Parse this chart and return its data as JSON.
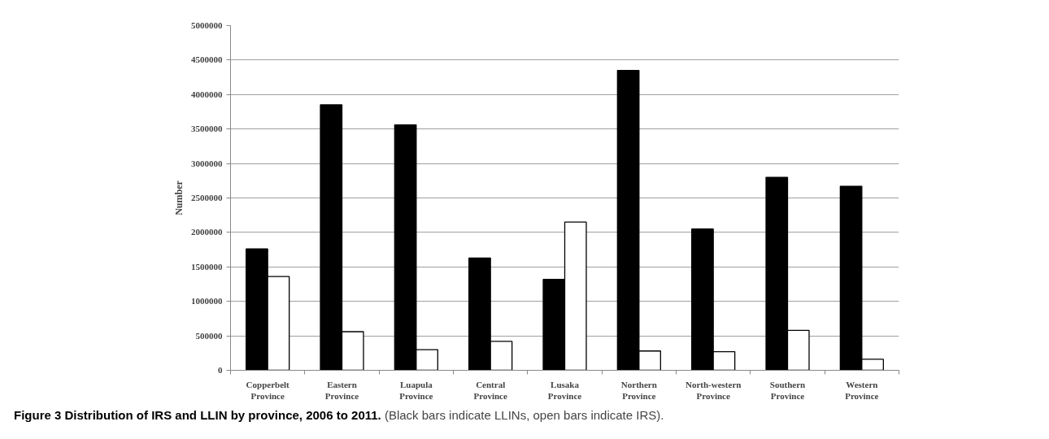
{
  "chart_data": {
    "type": "bar",
    "title": "Figure 3 Distribution of IRS and LLIN by province, 2006 to 2011.",
    "subtitle": "(Black bars indicate LLINs, open bars indicate IRS).",
    "ylabel": "Number",
    "categories": [
      "Copperbelt Province",
      "Eastern Province",
      "Luapula Province",
      "Central Province",
      "Lusaka Province",
      "Northern Province",
      "North-western Province",
      "Southern Province",
      "Western Province"
    ],
    "series": [
      {
        "color": "#000000",
        "values": [
          1760000,
          3850000,
          3560000,
          1630000,
          1320000,
          4350000,
          2050000,
          2800000,
          2670000
        ]
      },
      {
        "color": "#ffffff",
        "values": [
          1360000,
          560000,
          300000,
          420000,
          2150000,
          280000,
          270000,
          580000,
          160000
        ]
      }
    ],
    "ylim": [
      0,
      5000000
    ],
    "yticks": [
      0,
      500000,
      1000000,
      1500000,
      2000000,
      2500000,
      3000000,
      3500000,
      4000000,
      4500000,
      5000000
    ],
    "grid": "y"
  }
}
